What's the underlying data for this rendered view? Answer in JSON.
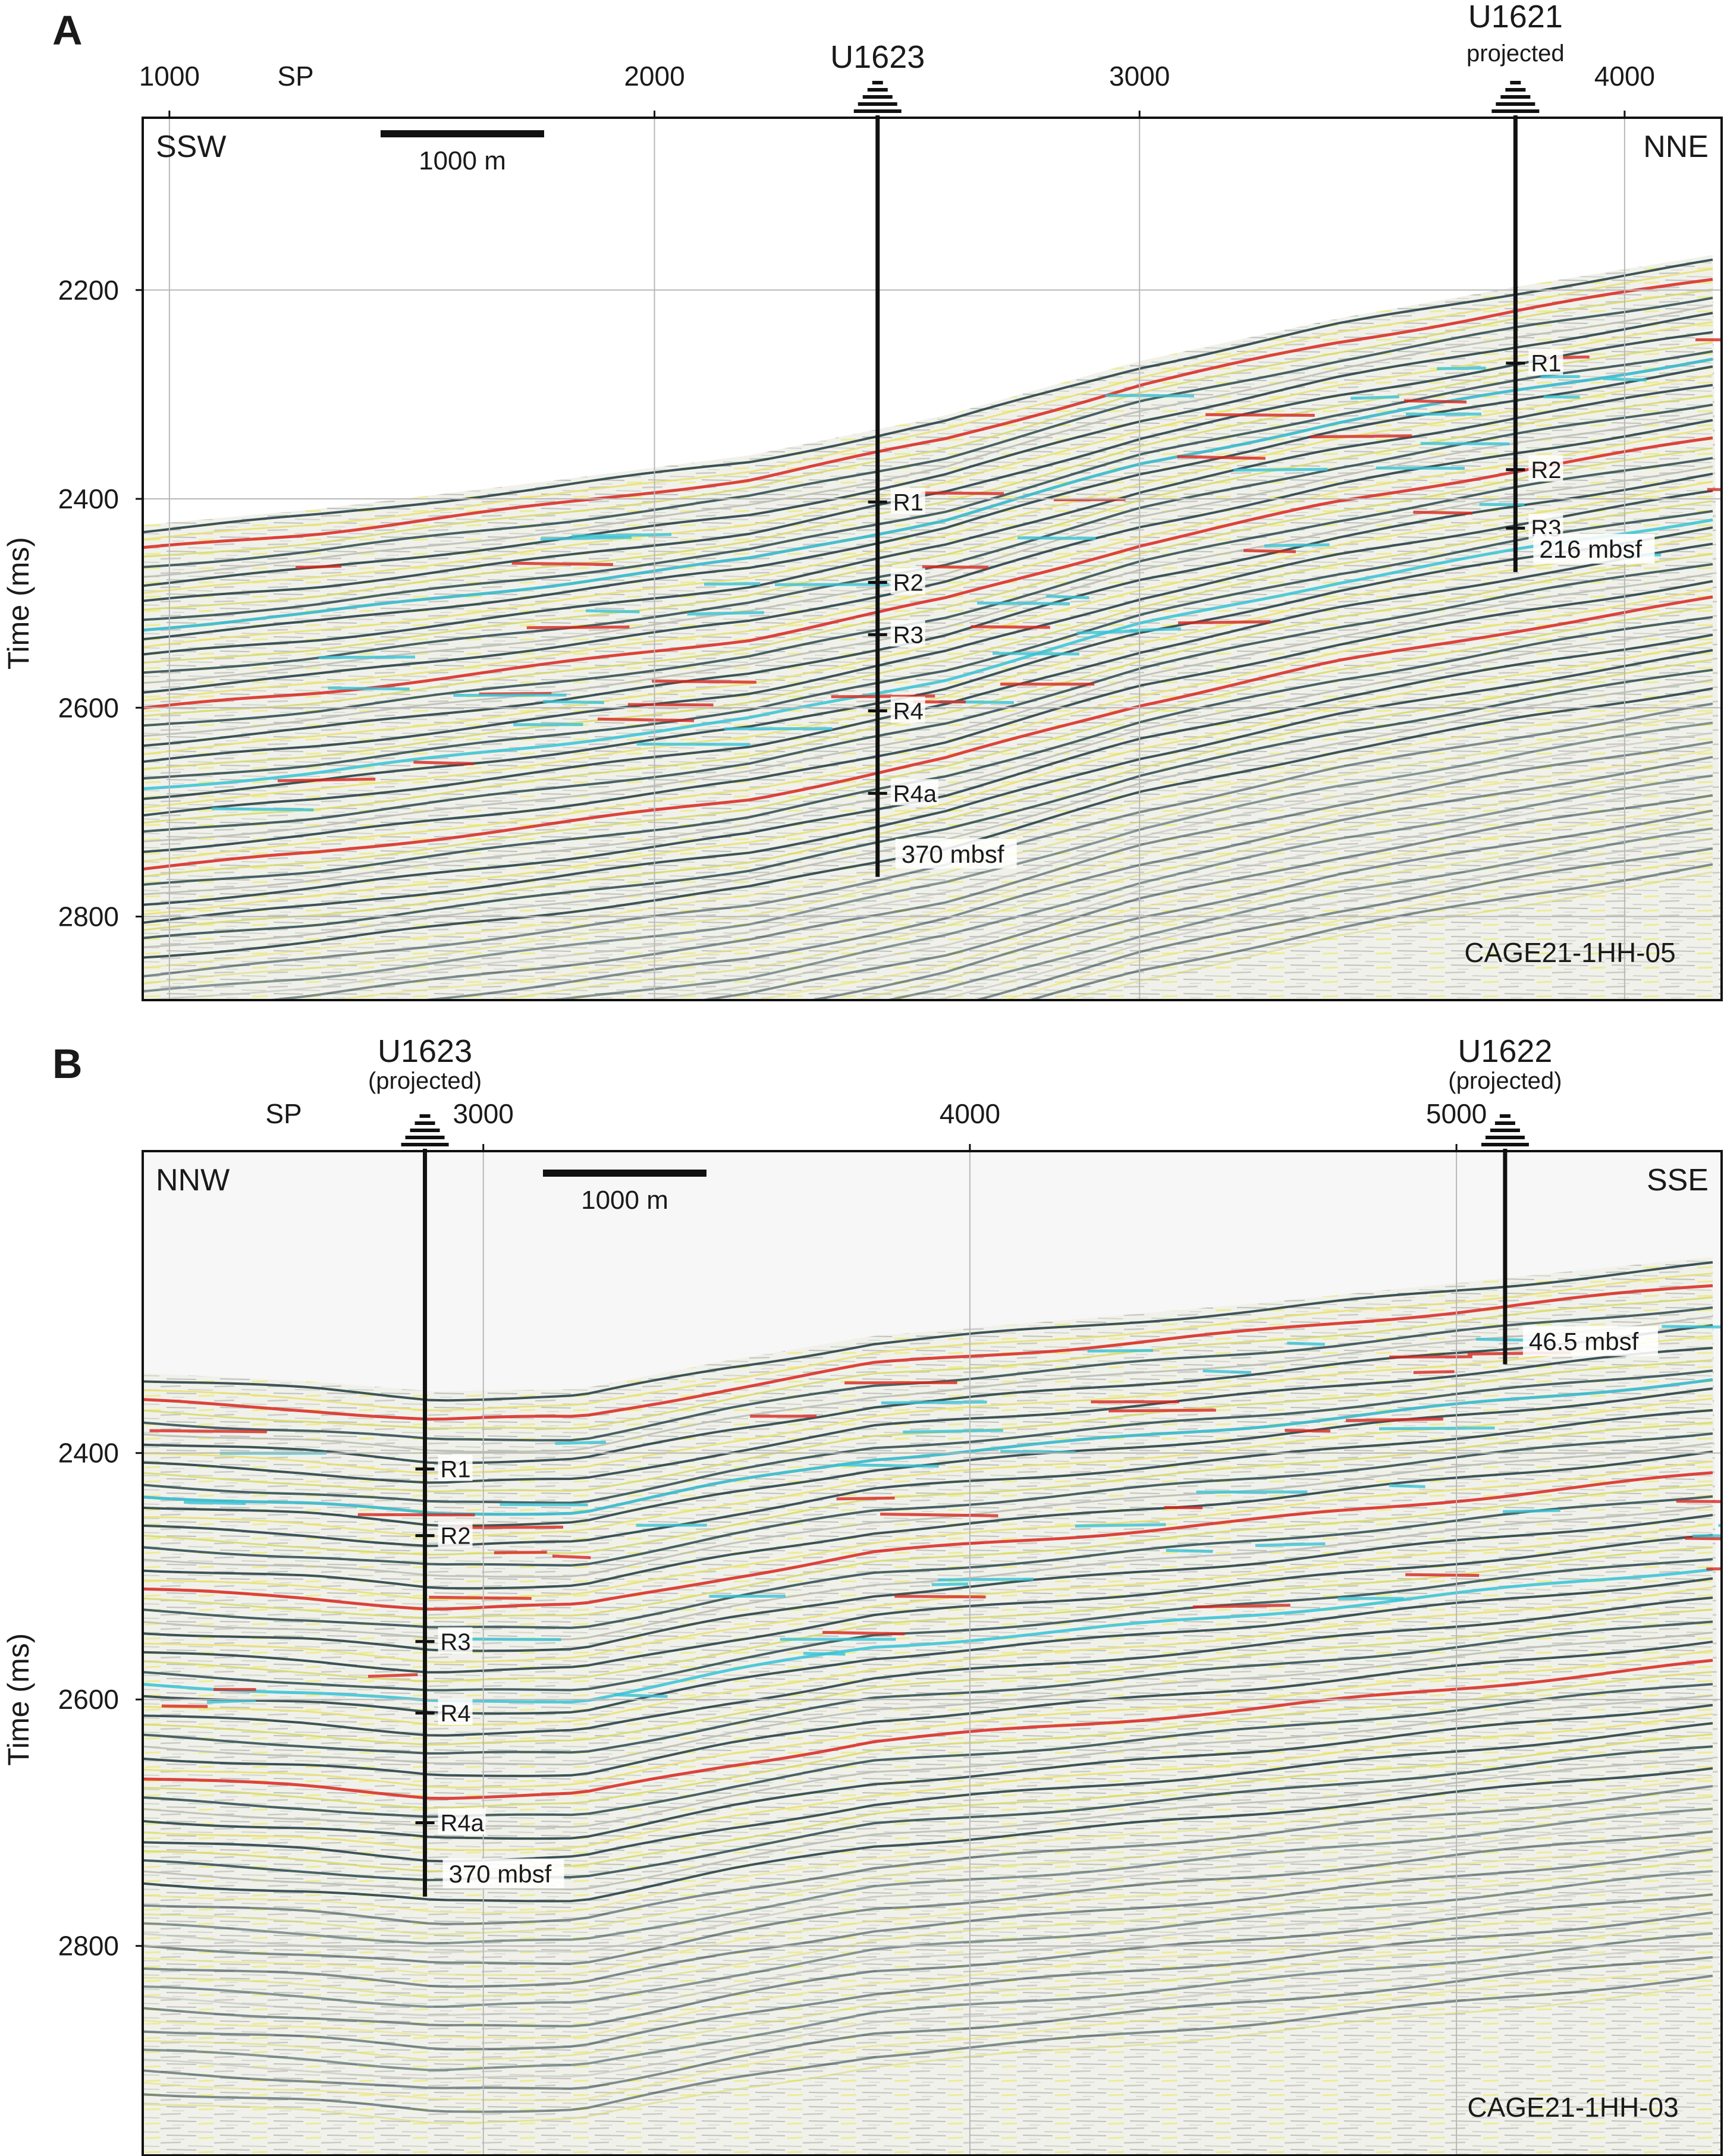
{
  "figure": {
    "panels": [
      {
        "id": "A",
        "letter": "A",
        "sp_label": "SP",
        "sp_ticks": [
          {
            "value": 1000,
            "label": "1000"
          },
          {
            "value": 2000,
            "label": "2000"
          },
          {
            "value": 3000,
            "label": "3000"
          },
          {
            "value": 4000,
            "label": "4000"
          }
        ],
        "sp_range": [
          945,
          4200
        ],
        "time_ticks": [
          {
            "value": 2200,
            "label": "2200"
          },
          {
            "value": 2400,
            "label": "2400"
          },
          {
            "value": 2600,
            "label": "2600"
          },
          {
            "value": 2800,
            "label": "2800"
          }
        ],
        "time_range": [
          2035,
          2880
        ],
        "y_axis_title": "Time (ms)",
        "dir_left": "SSW",
        "dir_right": "NNE",
        "scale_bar_label": "1000 m",
        "line_name": "CAGE21-1HH-05",
        "seafloor": [
          [
            945,
            2425
          ],
          [
            1300,
            2410
          ],
          [
            1800,
            2382
          ],
          [
            2200,
            2358
          ],
          [
            2600,
            2320
          ],
          [
            3000,
            2268
          ],
          [
            3400,
            2228
          ],
          [
            3800,
            2195
          ],
          [
            4200,
            2165
          ]
        ],
        "sites": [
          {
            "name": "U1623",
            "subtitle": "",
            "sp": 2460,
            "seafloor_time": 2337,
            "td_time": 2762,
            "td_label": "370 mbsf",
            "reflectors": [
              {
                "label": "R1",
                "time": 2403
              },
              {
                "label": "R2",
                "time": 2480
              },
              {
                "label": "R3",
                "time": 2530
              },
              {
                "label": "R4",
                "time": 2603
              },
              {
                "label": "R4a",
                "time": 2682
              }
            ]
          },
          {
            "name": "U1621",
            "subtitle": "projected",
            "sp": 3775,
            "seafloor_time": 2195,
            "td_time": 2470,
            "td_label": "216 mbsf",
            "reflectors": [
              {
                "label": "R1",
                "time": 2270
              },
              {
                "label": "R2",
                "time": 2372
              },
              {
                "label": "R3",
                "time": 2428
              }
            ]
          }
        ]
      },
      {
        "id": "B",
        "letter": "B",
        "sp_label": "SP",
        "sp_ticks": [
          {
            "value": 3000,
            "label": "3000"
          },
          {
            "value": 4000,
            "label": "4000"
          },
          {
            "value": 5000,
            "label": "5000"
          }
        ],
        "sp_range": [
          2300,
          5545
        ],
        "time_ticks": [
          {
            "value": 2400,
            "label": "2400"
          },
          {
            "value": 2600,
            "label": "2600"
          },
          {
            "value": 2800,
            "label": "2800"
          }
        ],
        "time_range": [
          2155,
          2970
        ],
        "y_axis_title": "Time (ms)",
        "dir_left": "NNW",
        "dir_right": "SSE",
        "scale_bar_label": "1000 m",
        "line_name": "CAGE21-1HH-03",
        "seafloor": [
          [
            2300,
            2335
          ],
          [
            2650,
            2342
          ],
          [
            2900,
            2350
          ],
          [
            3200,
            2348
          ],
          [
            3500,
            2325
          ],
          [
            3800,
            2305
          ],
          [
            4200,
            2292
          ],
          [
            4600,
            2278
          ],
          [
            5000,
            2262
          ],
          [
            5545,
            2240
          ]
        ],
        "sites": [
          {
            "name": "U1623",
            "subtitle": "(projected)",
            "sp": 2880,
            "seafloor_time": 2350,
            "td_time": 2760,
            "td_label": "370 mbsf",
            "reflectors": [
              {
                "label": "R1",
                "time": 2413
              },
              {
                "label": "R2",
                "time": 2467
              },
              {
                "label": "R3",
                "time": 2553
              },
              {
                "label": "R4",
                "time": 2611
              },
              {
                "label": "R4a",
                "time": 2700
              }
            ]
          },
          {
            "name": "U1622",
            "subtitle": "(projected)",
            "sp": 5100,
            "seafloor_time": 2258,
            "td_time": 2328,
            "td_label": "46.5 mbsf",
            "reflectors": []
          }
        ]
      }
    ]
  }
}
